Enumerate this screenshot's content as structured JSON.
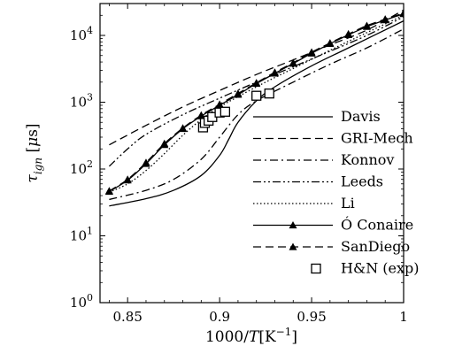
{
  "chart_data": {
    "type": "line",
    "title": "",
    "xlabel": "1000/T[K⁻¹]",
    "ylabel": "τign [μs]",
    "xlim": [
      0.835,
      1.0
    ],
    "ylim": [
      1,
      30000
    ],
    "y_scale": "log",
    "x_ticks": [
      0.85,
      0.9,
      0.95,
      1.0
    ],
    "x_tick_labels": [
      "0.85",
      "0.9",
      "0.95",
      "1"
    ],
    "y_ticks": [
      1,
      10,
      100,
      1000,
      10000
    ],
    "y_tick_labels": [
      "10^0",
      "10^1",
      "10^2",
      "10^3",
      "10^4"
    ],
    "grid": false,
    "legend_position": "lower-right",
    "series": [
      {
        "name": "Davis",
        "style": "solid",
        "marker": "none",
        "x": [
          0.84,
          0.86,
          0.875,
          0.89,
          0.9,
          0.905,
          0.91,
          0.92,
          0.93,
          0.95,
          0.97,
          1.0
        ],
        "y": [
          28,
          36,
          48,
          80,
          160,
          280,
          500,
          1050,
          1700,
          3500,
          6500,
          16500
        ]
      },
      {
        "name": "GRI-Mech",
        "style": "dashed",
        "marker": "none",
        "x": [
          0.84,
          0.86,
          0.88,
          0.9,
          0.92,
          0.94,
          0.96,
          0.98,
          1.0
        ],
        "y": [
          230,
          450,
          850,
          1500,
          2600,
          4300,
          7200,
          12000,
          24000
        ]
      },
      {
        "name": "Konnov",
        "style": "dashdot",
        "marker": "none",
        "x": [
          0.84,
          0.86,
          0.875,
          0.89,
          0.9,
          0.91,
          0.92,
          0.94,
          0.96,
          0.98,
          1.0
        ],
        "y": [
          35,
          48,
          70,
          140,
          300,
          650,
          1050,
          2000,
          3700,
          6500,
          12500
        ]
      },
      {
        "name": "Leeds",
        "style": "dashdotdot",
        "marker": "none",
        "x": [
          0.84,
          0.85,
          0.86,
          0.88,
          0.9,
          0.92,
          0.94,
          0.96,
          0.98,
          1.0
        ],
        "y": [
          110,
          200,
          330,
          650,
          1150,
          2000,
          3400,
          5800,
          10000,
          19000
        ]
      },
      {
        "name": "Li",
        "style": "dotted",
        "marker": "none",
        "x": [
          0.84,
          0.85,
          0.86,
          0.87,
          0.88,
          0.89,
          0.9,
          0.92,
          0.94,
          0.96,
          0.98,
          1.0
        ],
        "y": [
          45,
          60,
          95,
          170,
          320,
          550,
          850,
          1700,
          3200,
          6000,
          11000,
          20000
        ]
      },
      {
        "name": "Ó Conaire",
        "style": "solid",
        "marker": "triangle",
        "x": [
          0.84,
          0.85,
          0.86,
          0.87,
          0.88,
          0.89,
          0.9,
          0.91,
          0.92,
          0.93,
          0.94,
          0.95,
          0.96,
          0.97,
          0.98,
          0.99,
          1.0
        ],
        "y": [
          46,
          68,
          120,
          230,
          400,
          620,
          900,
          1300,
          1900,
          2700,
          3800,
          5400,
          7500,
          10200,
          13500,
          17000,
          21000
        ]
      },
      {
        "name": "SanDiego",
        "style": "dashed",
        "marker": "triangle",
        "x": [
          0.84,
          0.85,
          0.86,
          0.87,
          0.88,
          0.89,
          0.9,
          0.91,
          0.92,
          0.93,
          0.94,
          0.95,
          0.96,
          0.97,
          0.98,
          0.99,
          1.0
        ],
        "y": [
          47,
          70,
          125,
          240,
          410,
          640,
          930,
          1350,
          1950,
          2800,
          3900,
          5600,
          7700,
          10500,
          14000,
          17500,
          21500
        ]
      },
      {
        "name": "H&N (exp)",
        "style": "none",
        "marker": "square",
        "x": [
          0.891,
          0.892,
          0.894,
          0.896,
          0.9,
          0.903,
          0.92,
          0.927
        ],
        "y": [
          420,
          490,
          530,
          600,
          700,
          720,
          1250,
          1350
        ]
      }
    ]
  }
}
